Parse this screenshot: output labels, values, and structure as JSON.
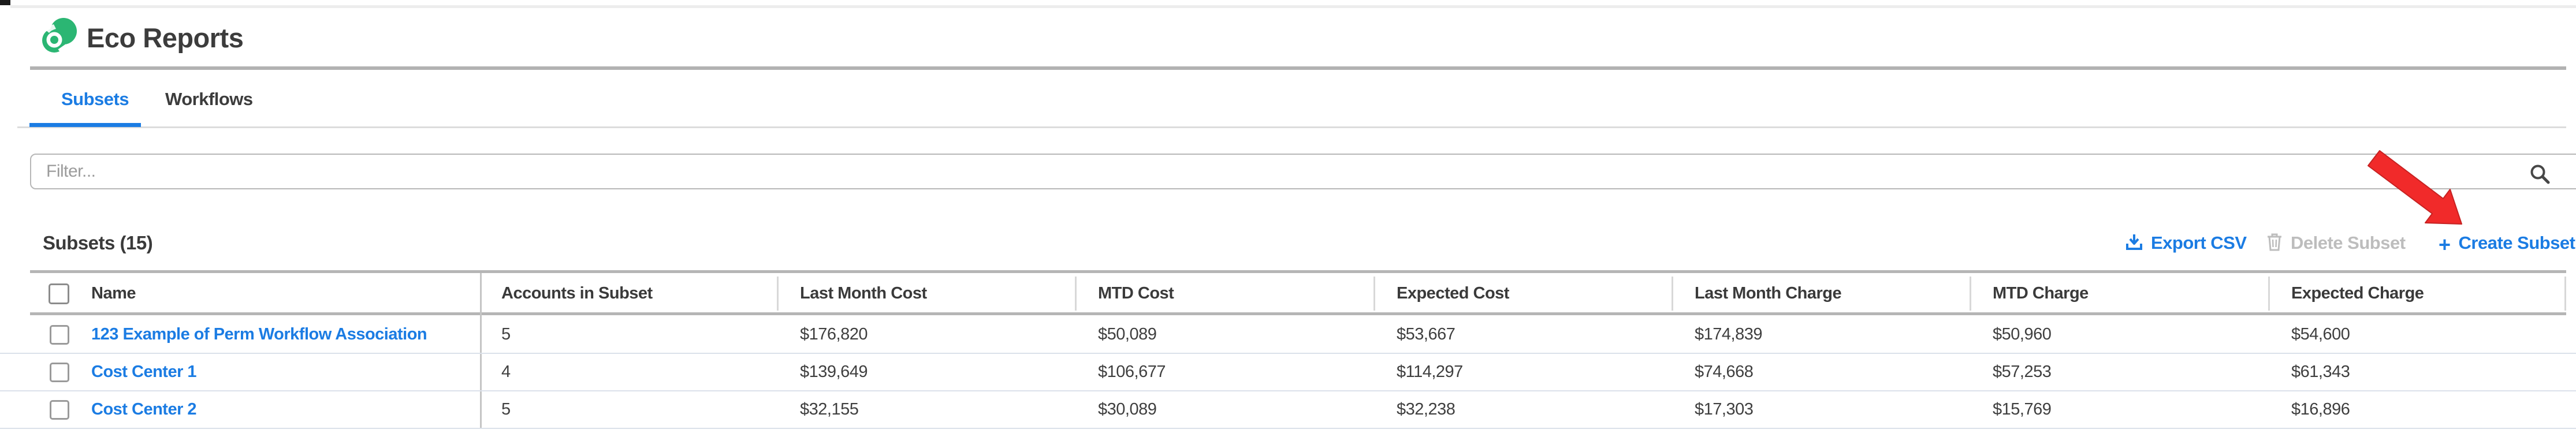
{
  "app": {
    "title": "Eco Reports"
  },
  "tabs": [
    {
      "label": "Subsets",
      "active": true
    },
    {
      "label": "Workflows",
      "active": false
    }
  ],
  "filter": {
    "placeholder": "Filter..."
  },
  "section": {
    "title": "Subsets (15)"
  },
  "toolbar": {
    "export_label": "Export CSV",
    "delete_label": "Delete Subset",
    "create_plus": "+",
    "create_label": "Create Subset"
  },
  "table": {
    "columns": [
      "Name",
      "Accounts in Subset",
      "Last Month Cost",
      "MTD Cost",
      "Expected Cost",
      "Last Month Charge",
      "MTD Charge",
      "Expected Charge"
    ],
    "rows": [
      {
        "name": "123 Example of Perm Workflow Association",
        "accounts": "5",
        "last_month_cost": "$176,820",
        "mtd_cost": "$50,089",
        "expected_cost": "$53,667",
        "last_month_charge": "$174,839",
        "mtd_charge": "$50,960",
        "expected_charge": "$54,600"
      },
      {
        "name": "Cost Center 1",
        "accounts": "4",
        "last_month_cost": "$139,649",
        "mtd_cost": "$106,677",
        "expected_cost": "$114,297",
        "last_month_charge": "$74,668",
        "mtd_charge": "$57,253",
        "expected_charge": "$61,343"
      },
      {
        "name": "Cost Center 2",
        "accounts": "5",
        "last_month_cost": "$32,155",
        "mtd_cost": "$30,089",
        "expected_cost": "$32,238",
        "last_month_charge": "$17,303",
        "mtd_charge": "$15,769",
        "expected_charge": "$16,896"
      }
    ]
  },
  "icons": {
    "logo": "eco-logo",
    "search": "search-icon",
    "export": "download-icon",
    "delete": "trash-icon"
  },
  "colors": {
    "accent_blue": "#1b7ce3",
    "brand_green": "#2bb673",
    "disabled_gray": "#bdbdbd",
    "annotation_red": "#f12a2a",
    "text_dark": "#3c3c3c",
    "rule_gray": "#b2b2b2"
  },
  "annotation": {
    "type": "red-arrow",
    "points_to": "Create Subset"
  }
}
